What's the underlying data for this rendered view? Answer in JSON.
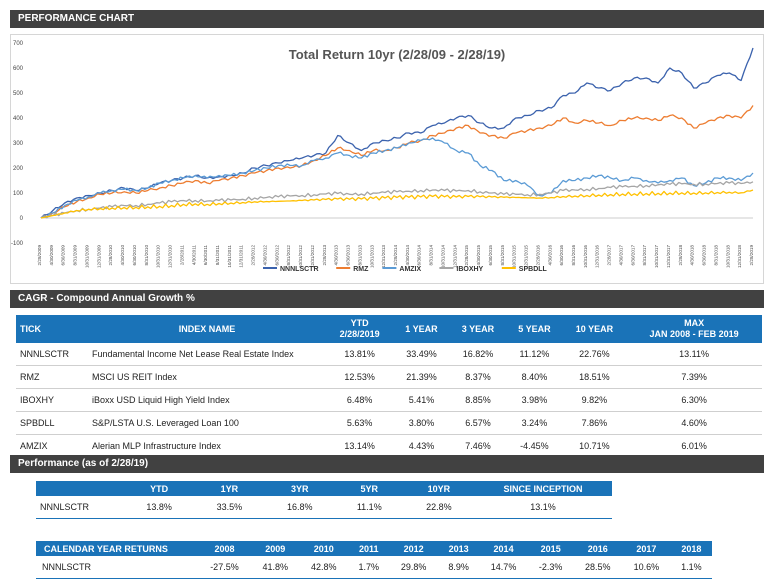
{
  "header": {
    "title": "PERFORMANCE CHART"
  },
  "chart_data": {
    "type": "line",
    "title": "Total Return 10yr (2/28/09  - 2/28/19)",
    "ylim": [
      -100,
      700
    ],
    "y_ticks": [
      "-100",
      "0",
      "100",
      "200",
      "300",
      "400",
      "500",
      "600",
      "700"
    ],
    "x_ticks": [
      "2/28/2009",
      "4/30/2009",
      "6/30/2009",
      "8/31/2009",
      "10/31/2009",
      "12/31/2009",
      "2/28/2010",
      "4/30/2010",
      "6/30/2010",
      "8/31/2010",
      "10/31/2010",
      "12/31/2010",
      "2/28/2011",
      "4/30/2011",
      "6/30/2011",
      "8/31/2011",
      "10/31/2011",
      "12/31/2011",
      "2/28/2012",
      "4/30/2012",
      "6/30/2012",
      "8/31/2012",
      "10/31/2012",
      "12/31/2012",
      "2/28/2013",
      "4/30/2013",
      "6/30/2013",
      "8/31/2013",
      "10/31/2013",
      "12/31/2013",
      "2/28/2014",
      "4/30/2014",
      "6/30/2014",
      "8/31/2014",
      "10/31/2014",
      "12/31/2014",
      "2/28/2015",
      "4/30/2015",
      "6/30/2015",
      "8/31/2015",
      "10/31/2015",
      "12/31/2015",
      "2/28/2016",
      "4/30/2016",
      "6/30/2016",
      "8/31/2016",
      "10/31/2016",
      "12/31/2016",
      "2/28/2017",
      "4/30/2017",
      "6/30/2017",
      "8/31/2017",
      "10/31/2017",
      "12/31/2017",
      "2/28/2018",
      "4/30/2018",
      "6/30/2018",
      "8/31/2018",
      "10/31/2018",
      "12/31/2018",
      "2/28/2019"
    ],
    "grid": false,
    "legend_position": "bottom",
    "series": [
      {
        "name": "NNNLSCTR",
        "color": "#3b62ad",
        "values": [
          0,
          30,
          60,
          80,
          90,
          100,
          110,
          120,
          110,
          120,
          140,
          150,
          160,
          170,
          160,
          165,
          170,
          180,
          200,
          210,
          220,
          230,
          240,
          250,
          260,
          330,
          300,
          270,
          300,
          310,
          320,
          340,
          340,
          370,
          380,
          400,
          410,
          380,
          360,
          360,
          400,
          410,
          430,
          440,
          490,
          500,
          540,
          520,
          510,
          540,
          560,
          560,
          540,
          600,
          580,
          520,
          540,
          570,
          580,
          550,
          680
        ]
      },
      {
        "name": "RMZ",
        "color": "#ed7d31",
        "values": [
          0,
          20,
          45,
          65,
          80,
          95,
          100,
          105,
          100,
          110,
          120,
          130,
          140,
          150,
          140,
          150,
          160,
          170,
          180,
          190,
          200,
          200,
          210,
          230,
          250,
          280,
          270,
          250,
          270,
          270,
          280,
          300,
          310,
          330,
          340,
          360,
          370,
          340,
          330,
          320,
          340,
          350,
          360,
          370,
          400,
          380,
          390,
          380,
          370,
          390,
          400,
          400,
          390,
          410,
          400,
          360,
          380,
          400,
          410,
          400,
          450
        ]
      },
      {
        "name": "AMZIX",
        "color": "#5b9bd5",
        "values": [
          0,
          20,
          50,
          70,
          85,
          100,
          110,
          115,
          110,
          120,
          140,
          150,
          160,
          170,
          160,
          170,
          170,
          180,
          190,
          200,
          210,
          210,
          210,
          230,
          240,
          260,
          250,
          240,
          260,
          270,
          280,
          300,
          310,
          320,
          300,
          270,
          260,
          210,
          190,
          150,
          150,
          130,
          90,
          100,
          150,
          150,
          160,
          170,
          160,
          150,
          160,
          150,
          140,
          150,
          160,
          130,
          140,
          160,
          160,
          150,
          180
        ]
      },
      {
        "name": "IBOXHY",
        "color": "#a5a5a5",
        "values": [
          0,
          10,
          20,
          30,
          35,
          40,
          45,
          50,
          50,
          55,
          60,
          65,
          70,
          70,
          68,
          70,
          72,
          75,
          80,
          82,
          85,
          88,
          90,
          93,
          96,
          98,
          95,
          96,
          100,
          102,
          105,
          107,
          110,
          112,
          110,
          108,
          110,
          105,
          100,
          95,
          95,
          93,
          95,
          100,
          110,
          112,
          115,
          118,
          122,
          125,
          127,
          130,
          133,
          135,
          137,
          135,
          136,
          138,
          140,
          138,
          145
        ]
      },
      {
        "name": "SPBDLL",
        "color": "#ffc000",
        "values": [
          0,
          10,
          20,
          30,
          35,
          38,
          40,
          42,
          43,
          45,
          47,
          50,
          55,
          57,
          55,
          58,
          60,
          62,
          65,
          66,
          67,
          68,
          70,
          72,
          74,
          76,
          75,
          76,
          78,
          80,
          82,
          83,
          84,
          86,
          85,
          84,
          86,
          85,
          84,
          83,
          82,
          81,
          80,
          82,
          86,
          88,
          90,
          92,
          94,
          96,
          97,
          98,
          99,
          100,
          101,
          100,
          101,
          102,
          103,
          101,
          112
        ]
      }
    ]
  },
  "cagr": {
    "title": "CAGR - Compound Annual Growth %",
    "columns": [
      "TICK",
      "INDEX NAME",
      "YTD",
      "1 YEAR",
      "3 YEAR",
      "5 YEAR",
      "10 YEAR",
      "MAX"
    ],
    "ytd_sub": "2/28/2019",
    "max_sub": "JAN 2008 - FEB 2019",
    "rows": [
      {
        "tick": "NNNLSCTR",
        "name": "Fundamental Income Net Lease Real Estate Index",
        "vals": [
          "13.81%",
          "33.49%",
          "16.82%",
          "11.12%",
          "22.76%",
          "13.11%"
        ]
      },
      {
        "tick": "RMZ",
        "name": "MSCI US REIT Index",
        "vals": [
          "12.53%",
          "21.39%",
          "8.37%",
          "8.40%",
          "18.51%",
          "7.39%"
        ]
      },
      {
        "tick": "IBOXHY",
        "name": "iBoxx USD Liquid High Yield Index",
        "vals": [
          "6.48%",
          "5.41%",
          "8.85%",
          "3.98%",
          "9.82%",
          "6.30%"
        ]
      },
      {
        "tick": "SPBDLL",
        "name": "S&P/LSTA U.S. Leveraged Loan 100",
        "vals": [
          "5.63%",
          "3.80%",
          "6.57%",
          "3.24%",
          "7.86%",
          "4.60%"
        ]
      },
      {
        "tick": "AMZIX",
        "name": "Alerian MLP Infrastructure Index",
        "vals": [
          "13.14%",
          "4.43%",
          "7.46%",
          "-4.45%",
          "10.71%",
          "6.01%"
        ]
      }
    ]
  },
  "performance": {
    "title": "Performance (as of 2/28/19)",
    "columns": [
      "YTD",
      "1YR",
      "3YR",
      "5YR",
      "10YR",
      "SINCE INCEPTION"
    ],
    "row": {
      "tick": "NNNLSCTR",
      "vals": [
        "13.8%",
        "33.5%",
        "16.8%",
        "11.1%",
        "22.8%",
        "13.1%"
      ]
    }
  },
  "calendar": {
    "title": "CALENDAR YEAR RETURNS",
    "years": [
      "2008",
      "2009",
      "2010",
      "2011",
      "2012",
      "2013",
      "2014",
      "2015",
      "2016",
      "2017",
      "2018"
    ],
    "row": {
      "tick": "NNNLSCTR",
      "vals": [
        "-27.5%",
        "41.8%",
        "42.8%",
        "1.7%",
        "29.8%",
        "8.9%",
        "14.7%",
        "-2.3%",
        "28.5%",
        "10.6%",
        "1.1%"
      ]
    }
  }
}
